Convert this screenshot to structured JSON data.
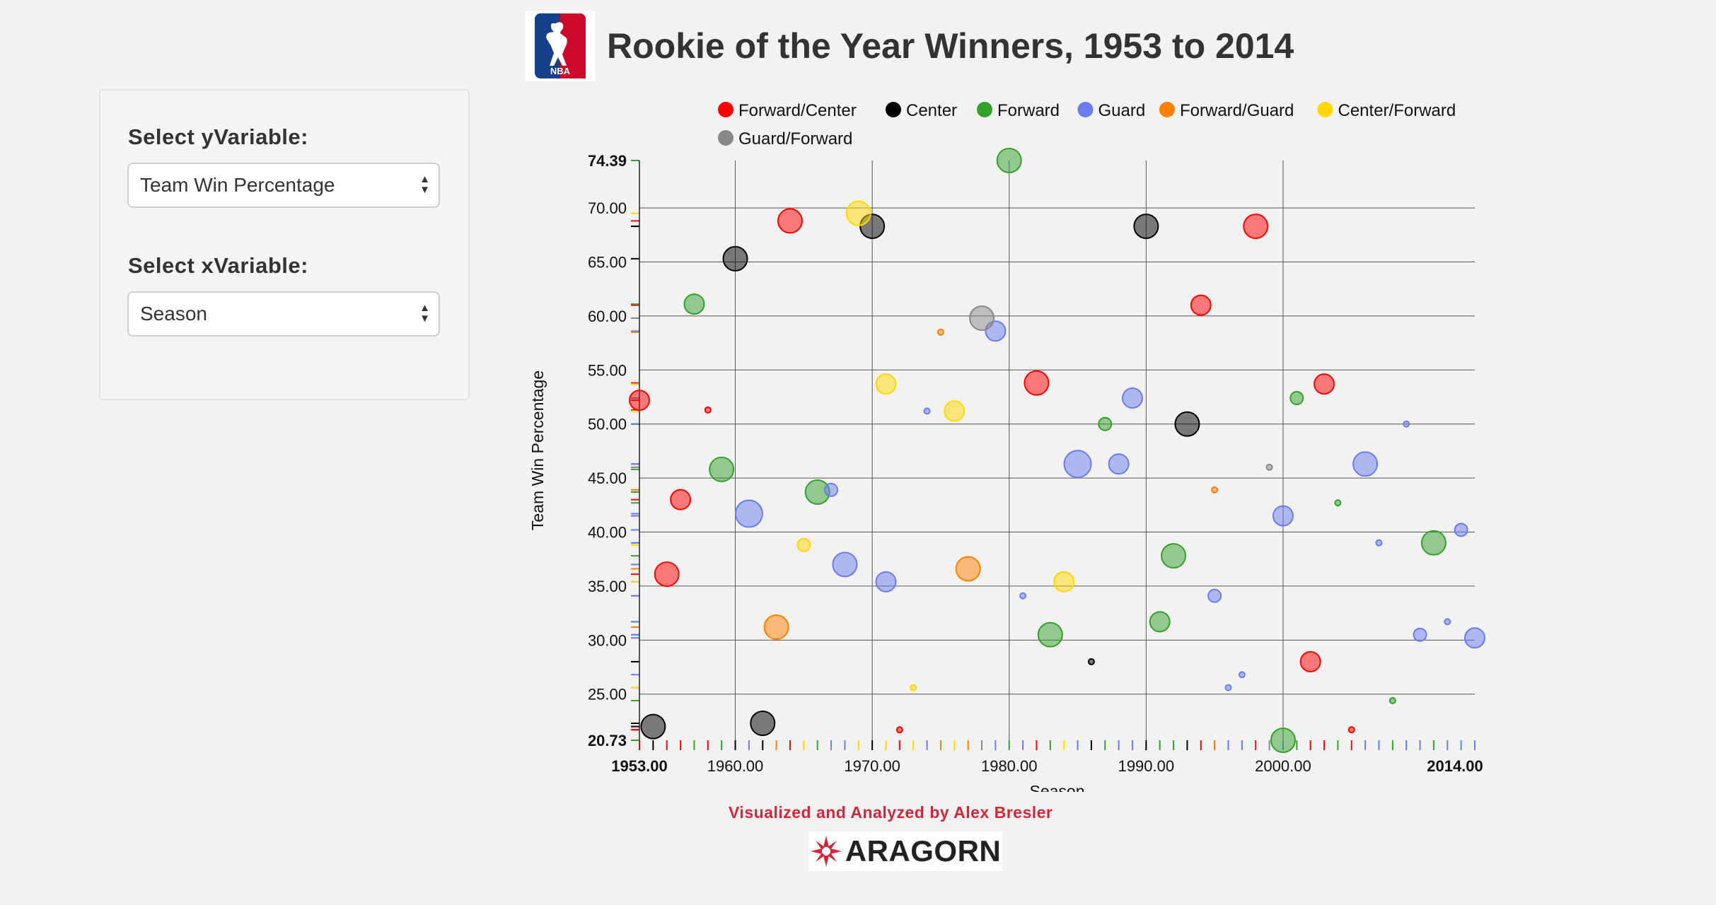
{
  "header": {
    "title": "Rookie of the Year Winners, 1953 to 2014",
    "logo_text": "NBA"
  },
  "controls": {
    "y_label": "Select yVariable:",
    "y_value": "Team Win Percentage",
    "x_label": "Select xVariable:",
    "x_value": "Season"
  },
  "footer": {
    "credit": "Visualized and Analyzed by Alex Bresler",
    "logo_text": "ARAGORN"
  },
  "chart_data": {
    "type": "scatter",
    "xlabel": "Season",
    "ylabel": "Team Win Percentage",
    "xlim": [
      1953,
      2014
    ],
    "ylim": [
      20.73,
      74.39
    ],
    "x_ticks": [
      "1953.00",
      "1960.00",
      "1970.00",
      "1980.00",
      "1990.00",
      "2000.00",
      "2014.00"
    ],
    "x_tick_values": [
      1953,
      1960,
      1970,
      1980,
      1990,
      2000,
      2014
    ],
    "y_ticks": [
      "20.73",
      "25.00",
      "30.00",
      "35.00",
      "40.00",
      "45.00",
      "50.00",
      "55.00",
      "60.00",
      "65.00",
      "70.00",
      "74.39"
    ],
    "y_tick_values": [
      20.73,
      25,
      30,
      35,
      40,
      45,
      50,
      55,
      60,
      65,
      70,
      74.39
    ],
    "grid": true,
    "legend_position": "top",
    "series": [
      {
        "name": "Forward/Center",
        "color": "#ff0000",
        "points": [
          [
            1953,
            52.2,
            "m"
          ],
          [
            1956,
            43.0,
            "m"
          ],
          [
            1955,
            36.1,
            "l"
          ],
          [
            1958,
            51.3,
            "xs"
          ],
          [
            1964,
            68.8,
            "l"
          ],
          [
            1972,
            21.7,
            "xs"
          ],
          [
            1982,
            53.8,
            "l"
          ],
          [
            1994,
            61.0,
            "m"
          ],
          [
            1998,
            68.3,
            "l"
          ],
          [
            2002,
            28.0,
            "m"
          ],
          [
            2003,
            53.7,
            "m"
          ],
          [
            2005,
            21.7,
            "xs"
          ]
        ]
      },
      {
        "name": "Center",
        "color": "#000000",
        "points": [
          [
            1954,
            22.0,
            "l"
          ],
          [
            1960,
            65.3,
            "l"
          ],
          [
            1962,
            22.3,
            "l"
          ],
          [
            1970,
            68.3,
            "l"
          ],
          [
            1986,
            28.0,
            "xs"
          ],
          [
            1990,
            68.3,
            "l"
          ],
          [
            1993,
            50.0,
            "l"
          ]
        ]
      },
      {
        "name": "Forward",
        "color": "#33a02c",
        "points": [
          [
            1957,
            61.1,
            "m"
          ],
          [
            1959,
            45.8,
            "l"
          ],
          [
            1966,
            43.7,
            "l"
          ],
          [
            1980,
            74.39,
            "l"
          ],
          [
            1983,
            30.5,
            "l"
          ],
          [
            1987,
            50.0,
            "s"
          ],
          [
            1991,
            31.7,
            "m"
          ],
          [
            1992,
            37.8,
            "l"
          ],
          [
            2000,
            20.73,
            "l"
          ],
          [
            2001,
            52.4,
            "s"
          ],
          [
            2004,
            42.7,
            "xs"
          ],
          [
            2008,
            24.4,
            "xs"
          ],
          [
            2011,
            39.0,
            "l"
          ]
        ]
      },
      {
        "name": "Guard",
        "color": "#6b7cf0",
        "points": [
          [
            1961,
            41.7,
            "xl"
          ],
          [
            1967,
            43.9,
            "s"
          ],
          [
            1968,
            37.0,
            "l"
          ],
          [
            1971,
            35.4,
            "m"
          ],
          [
            1974,
            51.2,
            "xs"
          ],
          [
            1979,
            58.6,
            "m"
          ],
          [
            1981,
            34.1,
            "xs"
          ],
          [
            1985,
            46.3,
            "xl"
          ],
          [
            1988,
            46.3,
            "m"
          ],
          [
            1989,
            52.4,
            "m"
          ],
          [
            1995,
            34.1,
            "s"
          ],
          [
            1996,
            25.6,
            "xs"
          ],
          [
            1997,
            26.8,
            "xs"
          ],
          [
            2000,
            41.5,
            "m"
          ],
          [
            2006,
            46.3,
            "l"
          ],
          [
            2007,
            39.0,
            "xs"
          ],
          [
            2009,
            50.0,
            "xs"
          ],
          [
            2010,
            30.5,
            "s"
          ],
          [
            2012,
            31.7,
            "xs"
          ],
          [
            2013,
            40.2,
            "s"
          ],
          [
            2014,
            30.2,
            "m"
          ]
        ]
      },
      {
        "name": "Forward/Guard",
        "color": "#ff7f00",
        "points": [
          [
            1963,
            31.2,
            "l"
          ],
          [
            1975,
            58.5,
            "xs"
          ],
          [
            1977,
            36.6,
            "l"
          ],
          [
            1995,
            43.9,
            "xs"
          ]
        ]
      },
      {
        "name": "Center/Forward",
        "color": "#ffd700",
        "points": [
          [
            1965,
            38.8,
            "s"
          ],
          [
            1969,
            69.5,
            "l"
          ],
          [
            1971,
            53.7,
            "m"
          ],
          [
            1973,
            25.6,
            "xs"
          ],
          [
            1976,
            51.2,
            "m"
          ],
          [
            1984,
            35.4,
            "m"
          ]
        ]
      },
      {
        "name": "Guard/Forward",
        "color": "#888888",
        "points": [
          [
            1978,
            59.8,
            "l"
          ],
          [
            1999,
            46.0,
            "xs"
          ]
        ]
      }
    ]
  }
}
